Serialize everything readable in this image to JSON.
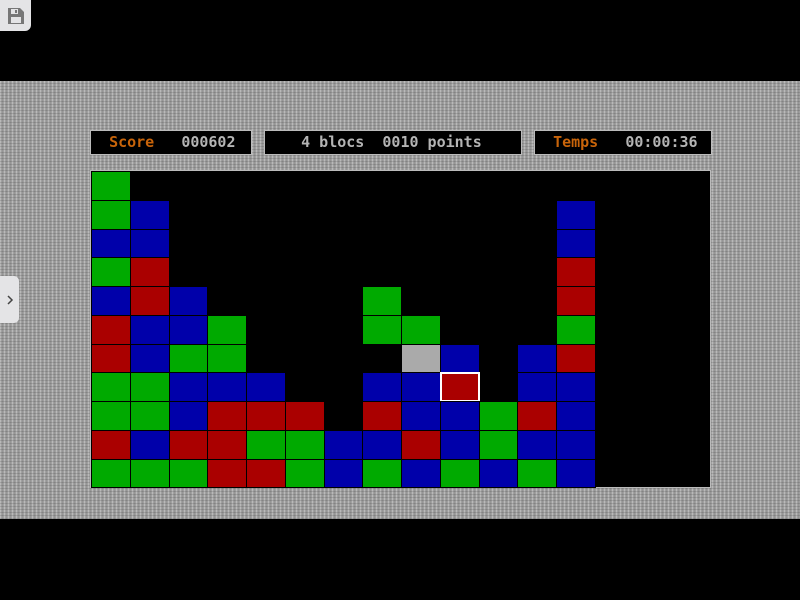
{
  "header": {
    "score_label": "Score",
    "score_value": "000602",
    "selection_info": "4 blocs  0010 points",
    "time_label": "Temps",
    "time_value": "00:00:36"
  },
  "colors": {
    "G": "#00aa00",
    "B": "#0000aa",
    "R": "#aa0000",
    "W": "#aaaaaa",
    "accent": "#c8640a"
  },
  "board": {
    "columns": 16,
    "rows": 11,
    "selected": {
      "row": 7,
      "col": 9
    },
    "grid": [
      "G...............",
      "GB..........B...",
      "BB..........B...",
      "GR..........R...",
      "BRB....G....R...",
      "RBBG...GG...G...",
      "RBGG....WB.BR...",
      "GGBBB..BBR.BB...",
      "GGBRRR.RBBGRB...",
      "RBRRGGBBRBGBB...",
      "GGGRRGBGBGBGB..."
    ]
  },
  "icons": {
    "save": "floppy-disk-icon",
    "expand": "chevron-right-icon"
  }
}
